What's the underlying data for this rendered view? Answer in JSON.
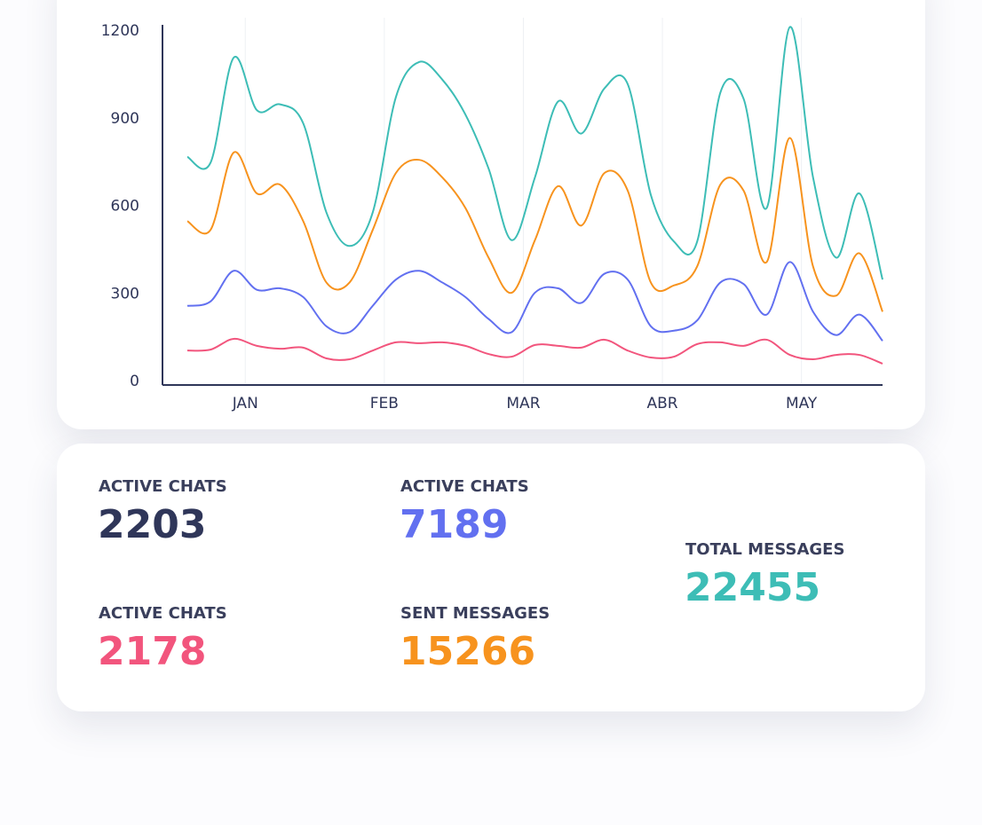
{
  "chart_data": {
    "type": "line",
    "x": [
      0,
      1,
      2,
      3,
      4,
      5,
      6,
      7,
      8,
      9,
      10,
      11,
      12,
      13,
      14,
      15,
      16,
      17,
      18,
      19,
      20,
      21,
      22,
      23,
      24,
      25,
      26,
      27,
      28,
      29,
      30
    ],
    "xlim": [
      0,
      30
    ],
    "xticks": [
      {
        "value": 2.5,
        "label": "JAN"
      },
      {
        "value": 8.5,
        "label": "FEB"
      },
      {
        "value": 14.5,
        "label": "MAR"
      },
      {
        "value": 20.5,
        "label": "ABR"
      },
      {
        "value": 26.5,
        "label": "MAY"
      }
    ],
    "ylim": [
      0,
      1200
    ],
    "yticks": [
      0,
      300,
      600,
      900,
      1200
    ],
    "grid": true,
    "series": [
      {
        "color": "#3dbdb6",
        "values": [
          775,
          755,
          1115,
          935,
          955,
          890,
          585,
          470,
          585,
          980,
          1100,
          1040,
          920,
          735,
          490,
          705,
          965,
          855,
          1010,
          1025,
          645,
          485,
          485,
          995,
          975,
          600,
          1220,
          705,
          430,
          650,
          355
        ]
      },
      {
        "color": "#f7931e",
        "values": [
          555,
          525,
          790,
          650,
          680,
          555,
          345,
          345,
          525,
          720,
          765,
          705,
          600,
          430,
          310,
          490,
          675,
          540,
          720,
          660,
          345,
          335,
          400,
          680,
          660,
          415,
          840,
          400,
          300,
          445,
          245
        ]
      },
      {
        "color": "#6270f0",
        "values": [
          265,
          280,
          385,
          320,
          325,
          295,
          195,
          175,
          265,
          355,
          385,
          345,
          295,
          220,
          175,
          310,
          325,
          275,
          375,
          355,
          195,
          180,
          215,
          345,
          340,
          235,
          415,
          245,
          165,
          235,
          145
        ]
      },
      {
        "color": "#f2557d",
        "values": [
          112,
          115,
          152,
          128,
          118,
          122,
          85,
          82,
          112,
          140,
          137,
          140,
          128,
          100,
          91,
          131,
          128,
          122,
          149,
          112,
          88,
          91,
          134,
          140,
          128,
          149,
          97,
          82,
          97,
          97,
          67
        ]
      }
    ]
  },
  "stats": [
    {
      "label": "ACTIVE CHATS",
      "value": 2203,
      "color": "#2f3659"
    },
    {
      "label": "ACTIVE CHATS",
      "value": 7189,
      "color": "#6270f0"
    },
    {
      "label": "ACTIVE CHATS",
      "value": 2178,
      "color": "#f2557d"
    },
    {
      "label": "SENT MESSAGES",
      "value": 15266,
      "color": "#f7931e"
    },
    {
      "label": "TOTAL MESSAGES",
      "value": 22455,
      "color": "#3dbdb6"
    }
  ]
}
